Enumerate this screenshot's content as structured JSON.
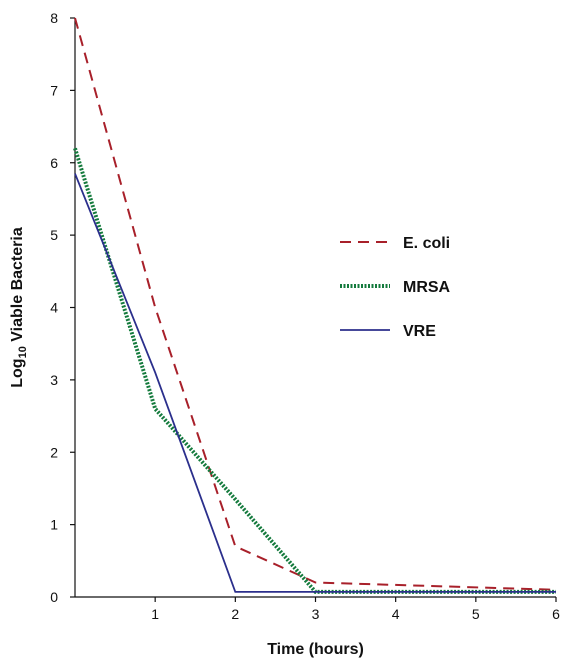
{
  "chart_data": {
    "type": "line",
    "xlabel": "Time (hours)",
    "ylabel": {
      "prefix": "Log",
      "subscript": "10",
      "suffix": " Viable Bacteria"
    },
    "xlim": [
      0,
      6
    ],
    "ylim": [
      0,
      8
    ],
    "xticks": [
      "1",
      "2",
      "3",
      "4",
      "5",
      "6"
    ],
    "yticks": [
      "0",
      "1",
      "2",
      "3",
      "4",
      "5",
      "6",
      "7",
      "8"
    ],
    "grid": false,
    "legend_position": "right-middle",
    "series": [
      {
        "name": "E. coli",
        "color": "#a8202a",
        "style": "dashed",
        "x": [
          0,
          1,
          2,
          3,
          6
        ],
        "y": [
          8.0,
          4.0,
          0.7,
          0.2,
          0.1
        ]
      },
      {
        "name": "MRSA",
        "color": "#137a3c",
        "style": "dotted",
        "x": [
          0,
          1,
          2,
          3,
          6
        ],
        "y": [
          6.2,
          2.6,
          1.35,
          0.07,
          0.07
        ]
      },
      {
        "name": "VRE",
        "color": "#2b2f8c",
        "style": "solid",
        "x": [
          0,
          1,
          2,
          3,
          6
        ],
        "y": [
          5.85,
          3.1,
          0.07,
          0.07,
          0.07
        ]
      }
    ]
  }
}
